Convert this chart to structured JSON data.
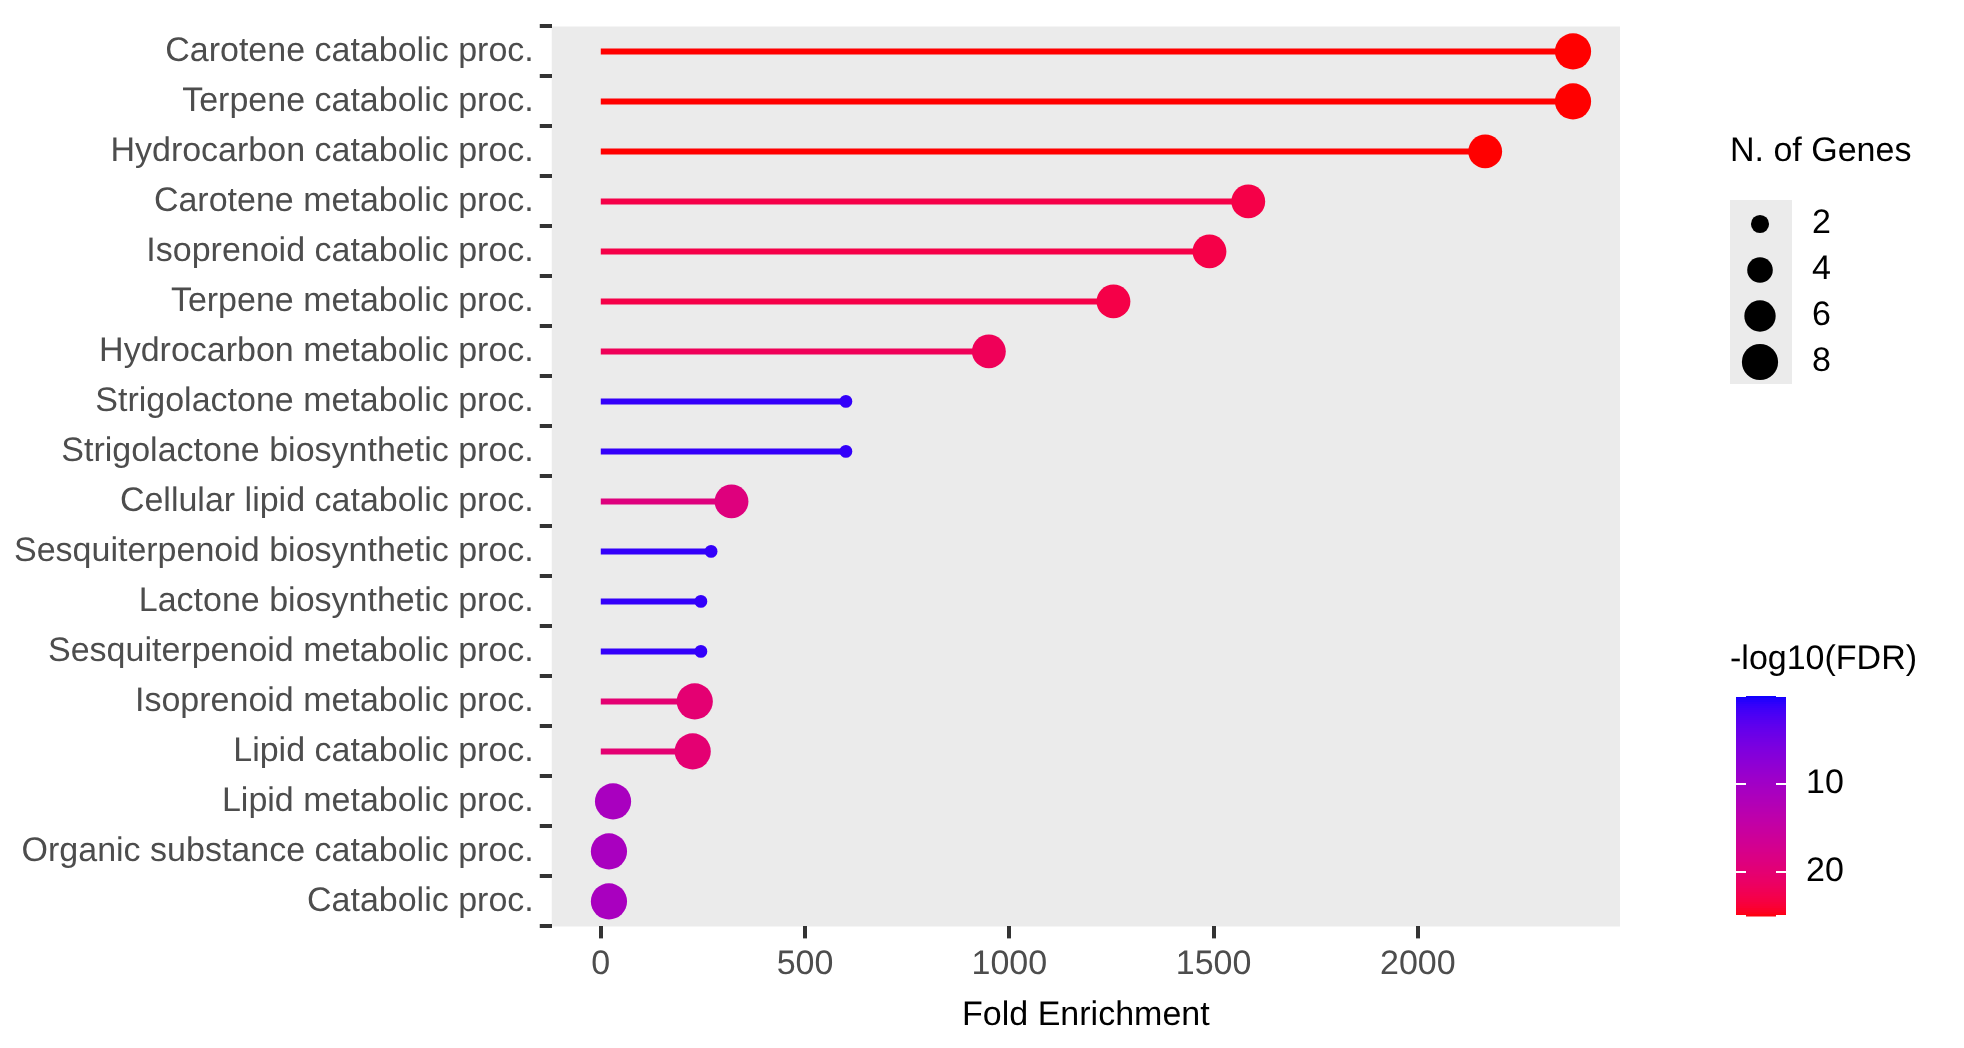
{
  "chart_data": {
    "type": "lollipop",
    "orientation": "horizontal",
    "xlabel": "Fold Enrichment",
    "categories": [
      "Carotene catabolic proc.",
      "Terpene catabolic proc.",
      "Hydrocarbon catabolic proc.",
      "Carotene metabolic proc.",
      "Isoprenoid catabolic proc.",
      "Terpene metabolic proc.",
      "Hydrocarbon metabolic proc.",
      "Strigolactone metabolic proc.",
      "Strigolactone biosynthetic proc.",
      "Cellular lipid catabolic proc.",
      "Sesquiterpenoid biosynthetic proc.",
      "Lactone biosynthetic proc.",
      "Sesquiterpenoid metabolic proc.",
      "Isoprenoid metabolic proc.",
      "Lipid catabolic proc.",
      "Lipid metabolic proc.",
      "Organic substance catabolic proc.",
      "Catabolic proc."
    ],
    "values": [
      2380,
      2380,
      2165,
      1585,
      1490,
      1255,
      950,
      600,
      600,
      320,
      270,
      245,
      245,
      230,
      225,
      30,
      20,
      20
    ],
    "cvalues": [
      25,
      25,
      25,
      23,
      23,
      23,
      22,
      1,
      1,
      19,
      1,
      1,
      1,
      20,
      20,
      11,
      11,
      11
    ],
    "sizes": [
      8,
      8,
      7,
      7,
      7,
      7,
      7,
      1,
      1,
      7,
      1,
      1,
      1,
      8,
      8,
      8,
      8,
      8
    ],
    "size_legend": [
      2,
      4,
      6,
      8
    ],
    "legend_title": "N. of Genes",
    "clim": [
      0,
      25
    ],
    "cticks": [
      {
        "value": 0,
        "label": null
      },
      10,
      20,
      {
        "value": 25,
        "label": null
      }
    ],
    "clabel": "-log10(FDR)",
    "xlim": [
      -120,
      2495
    ],
    "xticks": [
      0,
      500,
      1000,
      1500,
      2000
    ],
    "grid": false,
    "marker": "circle"
  }
}
